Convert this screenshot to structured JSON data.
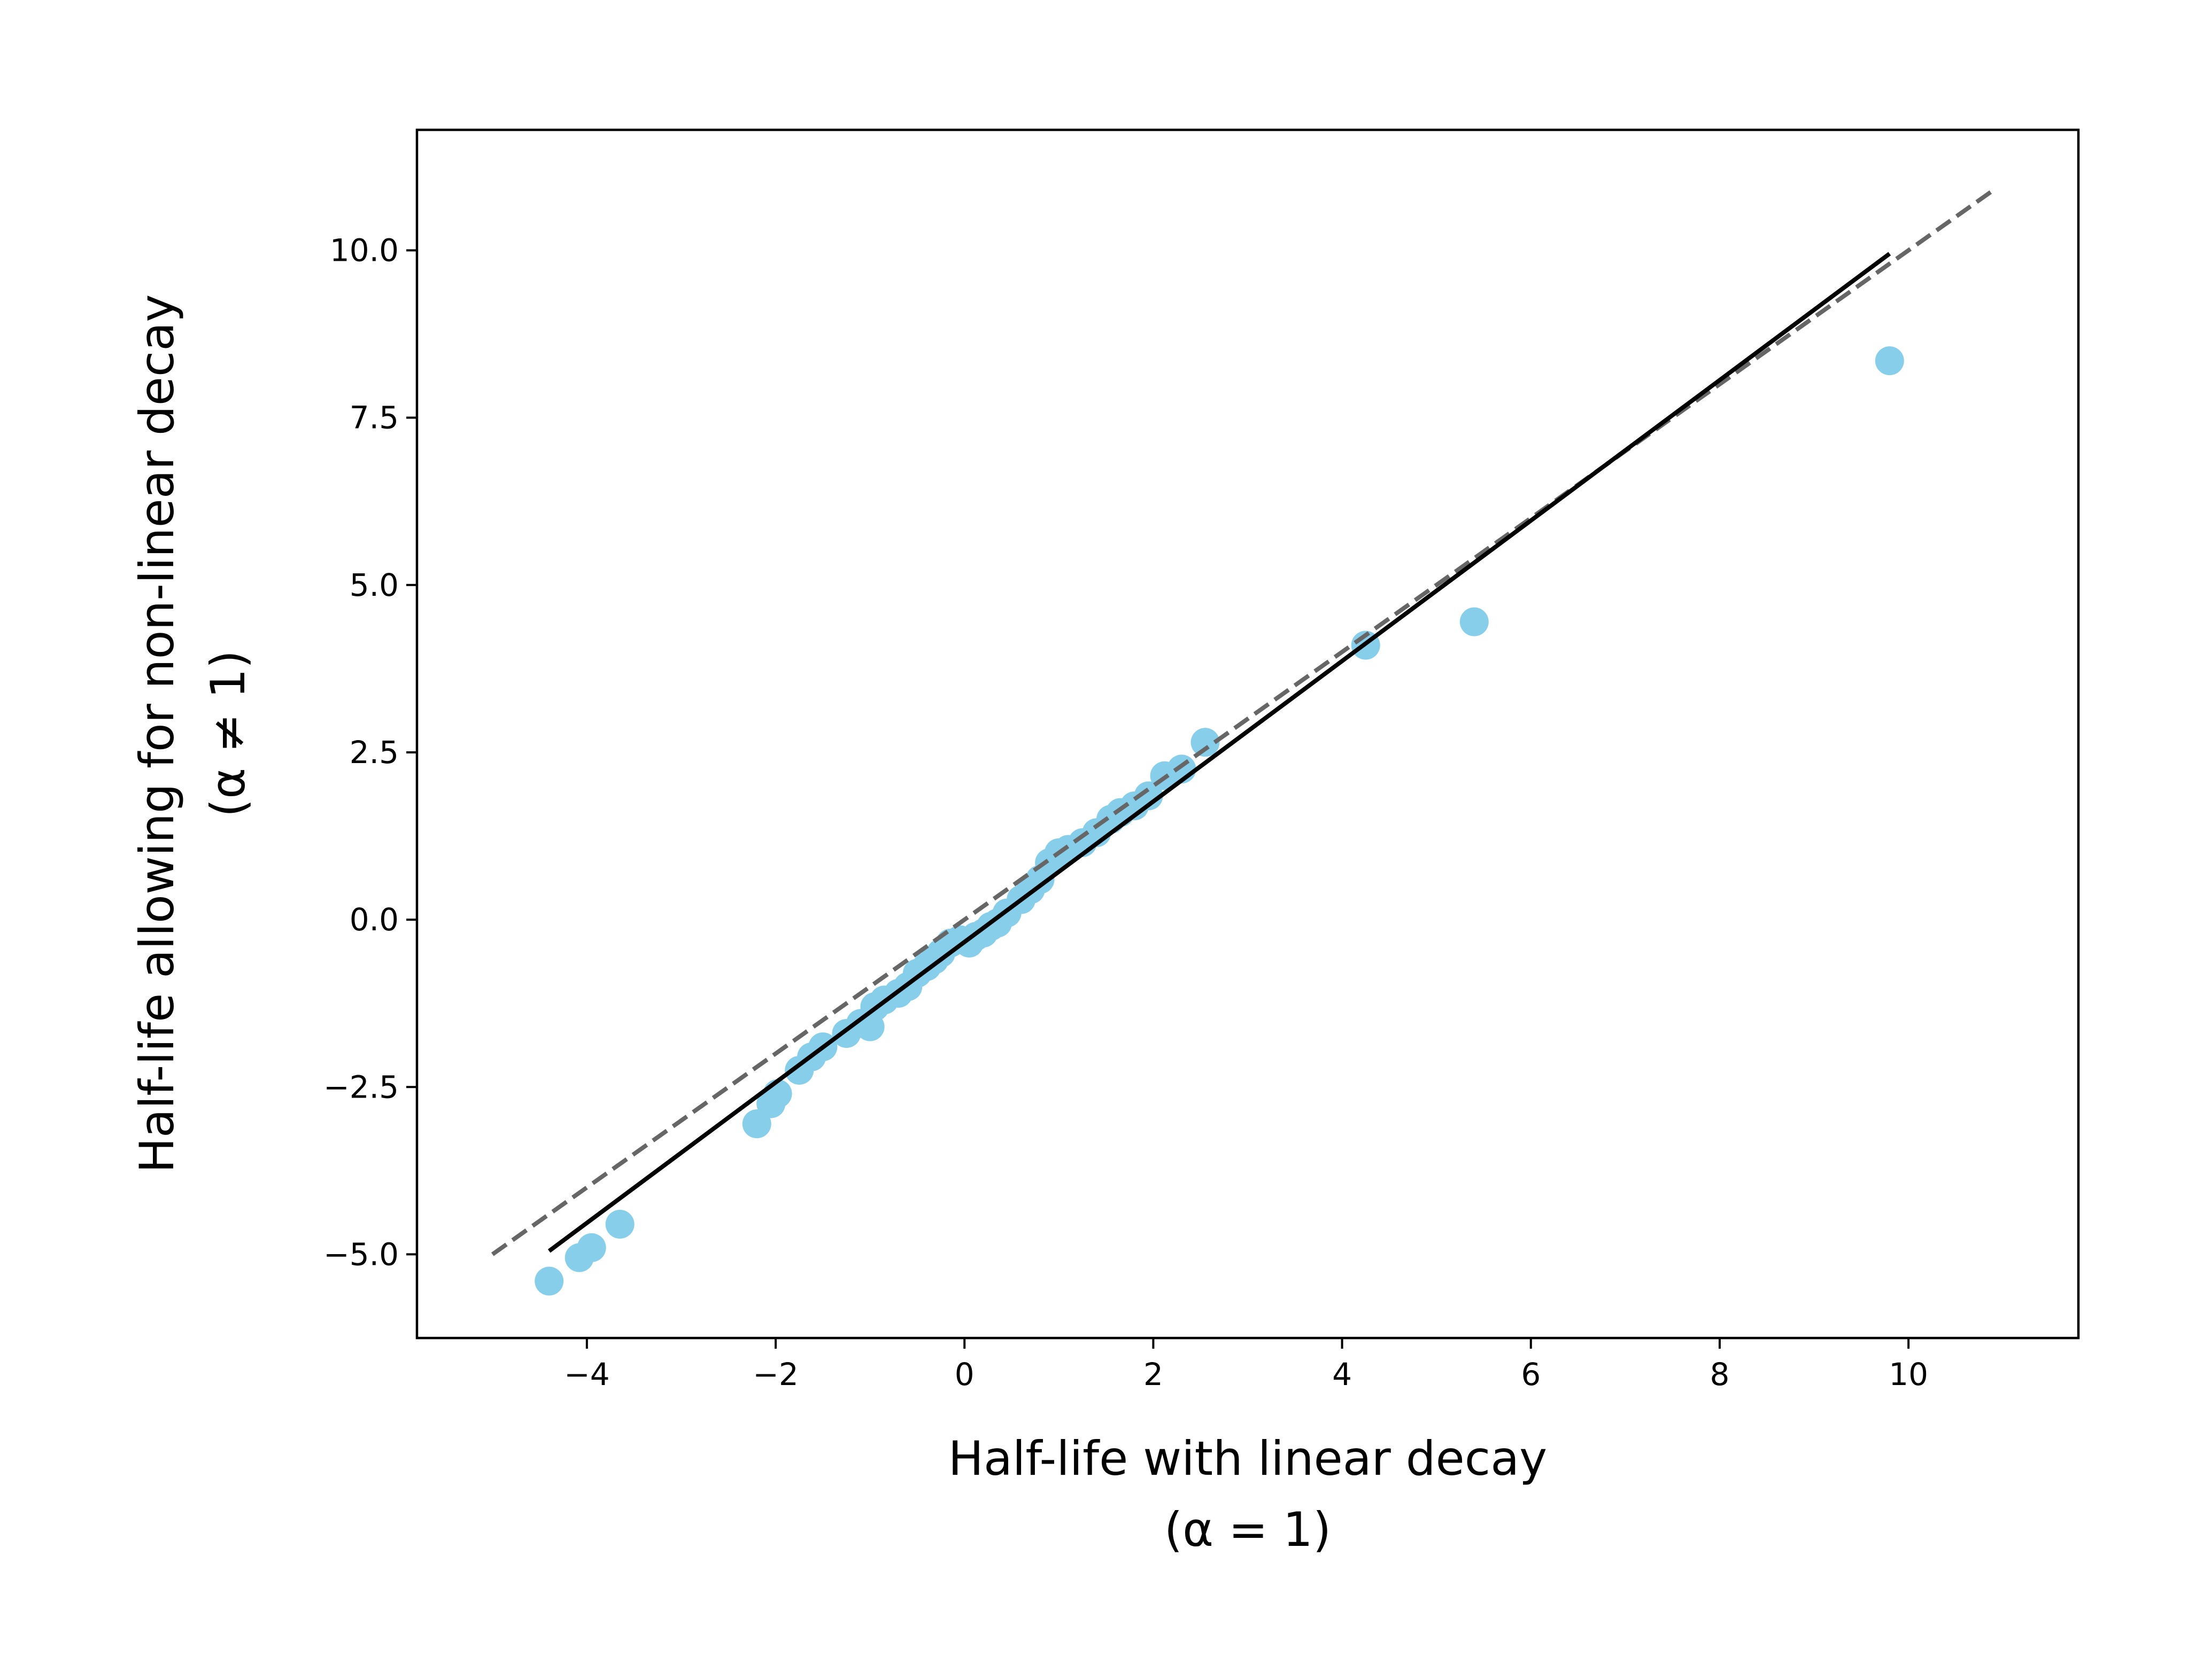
{
  "chart_data": {
    "type": "scatter",
    "title": "",
    "xlabel": [
      "Half-life with linear decay",
      "(α = 1)"
    ],
    "ylabel": [
      "Half-life allowing for non-linear decay",
      "(α ≠ 1)"
    ],
    "xlim": [
      -5.8,
      11.8
    ],
    "ylim": [
      -6.25,
      11.8
    ],
    "xticks": [
      -4,
      -2,
      0,
      2,
      4,
      6,
      8,
      10
    ],
    "xtick_labels": [
      "−4",
      "−2",
      "0",
      "2",
      "4",
      "6",
      "8",
      "10"
    ],
    "yticks": [
      -5.0,
      -2.5,
      0.0,
      2.5,
      5.0,
      7.5,
      10.0
    ],
    "ytick_labels": [
      "−5.0",
      "−2.5",
      "0.0",
      "2.5",
      "5.0",
      "7.5",
      "10.0"
    ],
    "grid": false,
    "legend": "none",
    "points_color": "#87ceeb",
    "series": [
      {
        "x": [
          -4.4,
          -4.08,
          -3.95,
          -3.65,
          -2.2,
          -2.05,
          -1.98,
          -1.75,
          -1.62,
          -1.5,
          -1.25,
          -1.1,
          -1.0,
          -0.95,
          -0.85,
          -0.7,
          -0.6,
          -0.5,
          -0.4,
          -0.32,
          -0.25,
          -0.15,
          -0.05,
          0.05,
          0.12,
          0.2,
          0.28,
          0.35,
          0.45,
          0.6,
          0.7,
          0.8,
          0.9,
          1.0,
          1.1,
          1.25,
          1.4,
          1.55,
          1.65,
          1.8,
          1.95,
          2.12,
          2.3,
          2.55,
          4.25,
          5.4,
          9.8
        ],
        "y": [
          -5.4,
          -5.05,
          -4.9,
          -4.55,
          -3.05,
          -2.75,
          -2.6,
          -2.25,
          -2.05,
          -1.9,
          -1.7,
          -1.55,
          -1.6,
          -1.3,
          -1.2,
          -1.1,
          -1.0,
          -0.8,
          -0.7,
          -0.6,
          -0.5,
          -0.35,
          -0.3,
          -0.35,
          -0.25,
          -0.2,
          -0.1,
          -0.05,
          0.1,
          0.3,
          0.45,
          0.6,
          0.85,
          1.0,
          1.05,
          1.15,
          1.3,
          1.5,
          1.6,
          1.7,
          1.85,
          2.15,
          2.25,
          2.65,
          4.1,
          4.45,
          8.35
        ]
      }
    ],
    "fit_line": {
      "x": [
        -4.4,
        9.8
      ],
      "y": [
        -4.95,
        9.95
      ],
      "color": "#000000"
    },
    "reference_line": {
      "x": [
        -5.0,
        10.9
      ],
      "y": [
        -5.0,
        10.9
      ],
      "color": "#666666",
      "dashed": true
    }
  }
}
